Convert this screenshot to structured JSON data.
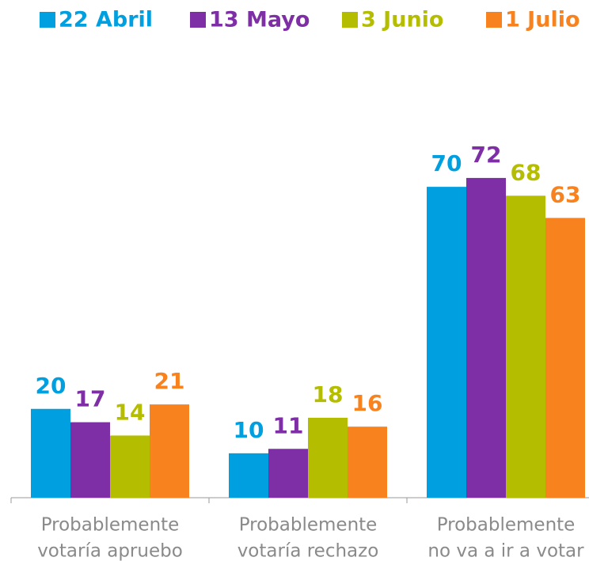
{
  "chart_data": {
    "type": "bar",
    "categories": [
      [
        "Probablemente",
        "votaría apruebo"
      ],
      [
        "Probablemente",
        "votaría rechazo"
      ],
      [
        "Probablemente",
        "no va a ir a votar"
      ]
    ],
    "series": [
      {
        "name": "22 Abril",
        "color": "#009fdf",
        "values": [
          20,
          10,
          70
        ]
      },
      {
        "name": "13 Mayo",
        "color": "#7f2fa5",
        "values": [
          17,
          11,
          72
        ]
      },
      {
        "name": "3 Junio",
        "color": "#b5bd00",
        "values": [
          14,
          18,
          68
        ]
      },
      {
        "name": "1 Julio",
        "color": "#f7821e",
        "values": [
          21,
          16,
          63
        ]
      }
    ],
    "ylim": [
      0,
      80
    ],
    "legend": "top"
  }
}
